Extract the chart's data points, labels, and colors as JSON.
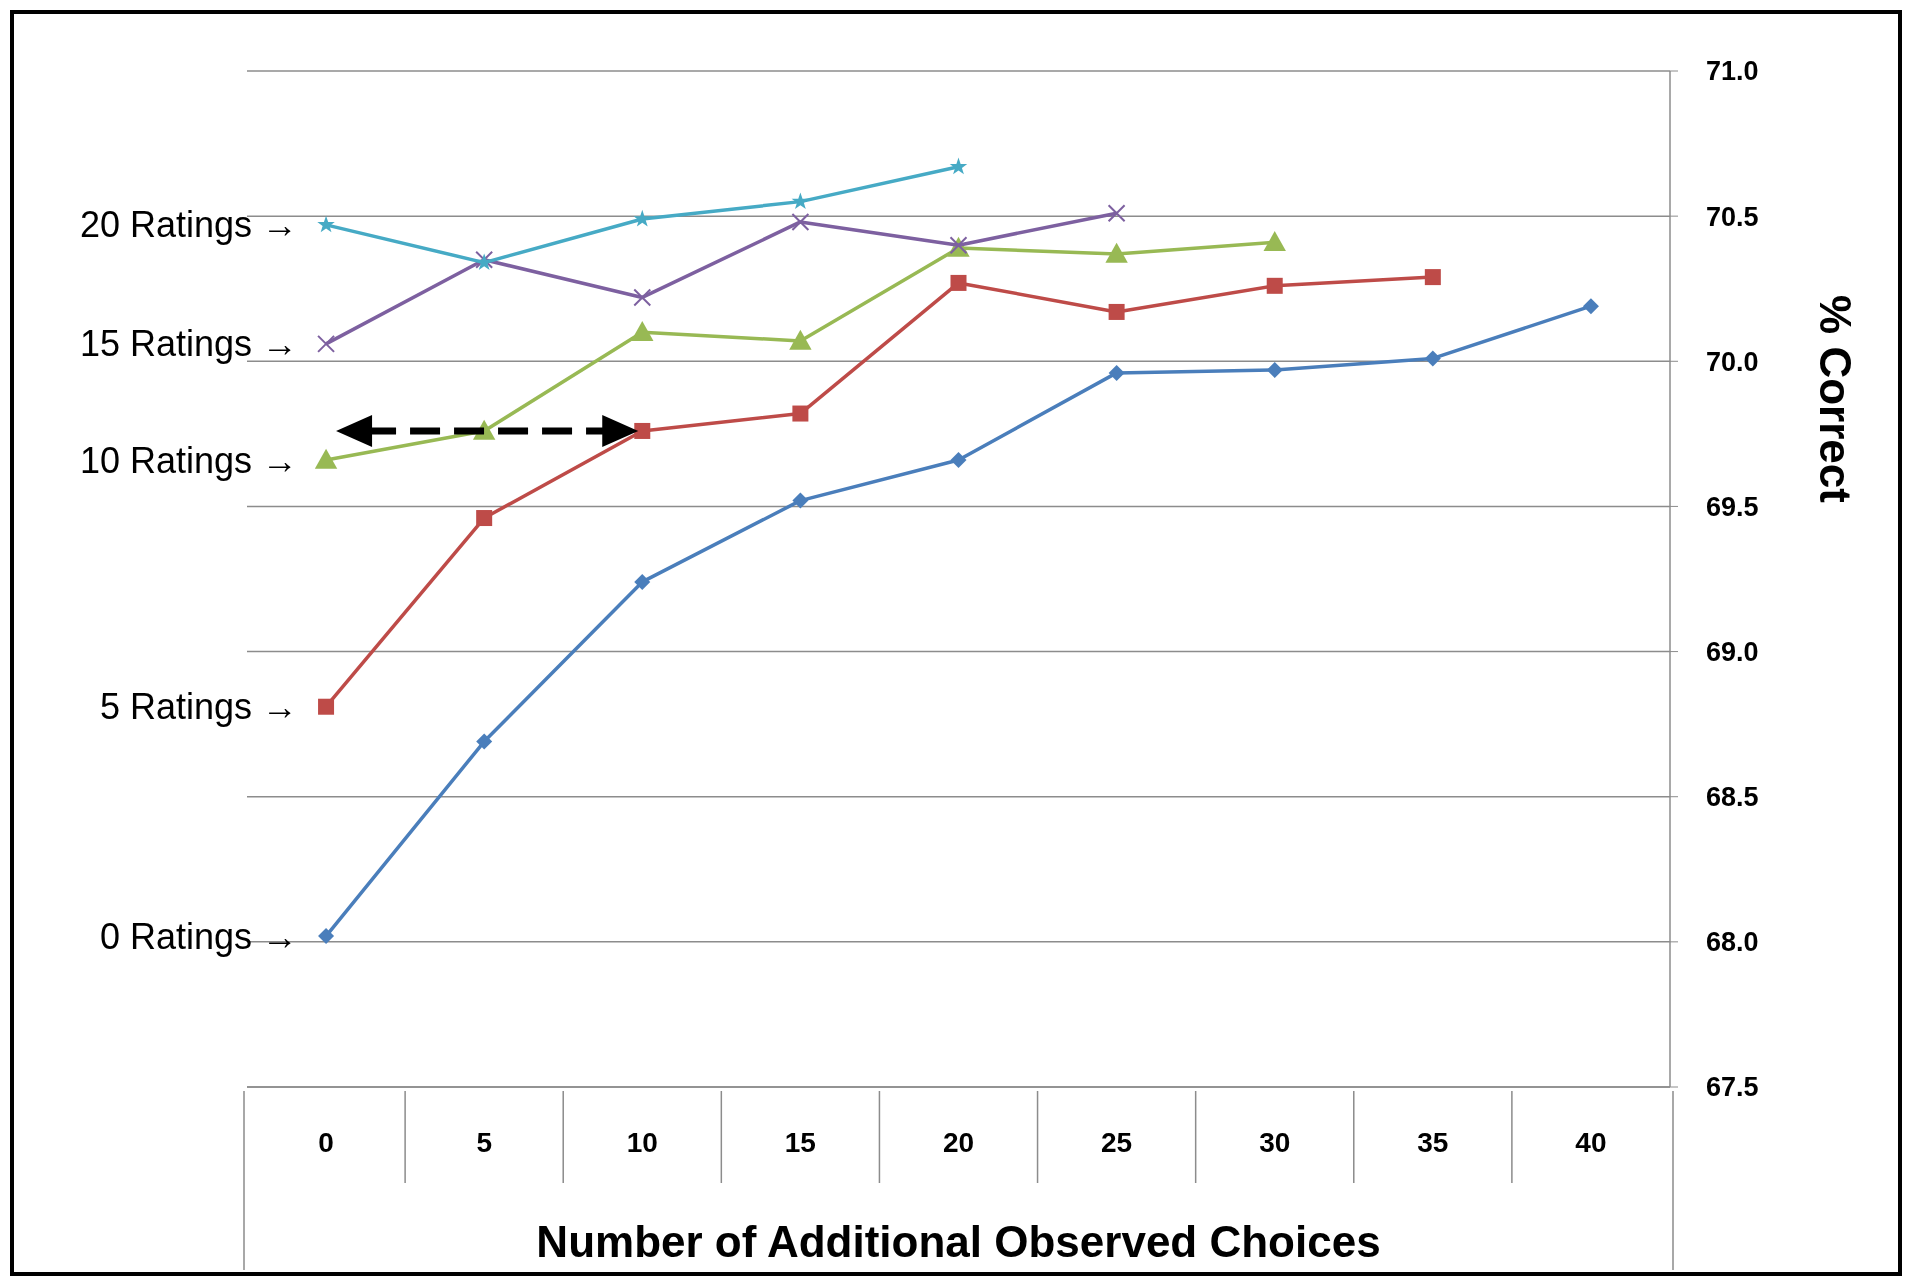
{
  "chart_data": {
    "type": "line",
    "xlabel": "Number of Additional Observed Choices",
    "ylabel": "% Correct",
    "categories": [
      "0",
      "5",
      "10",
      "15",
      "20",
      "25",
      "30",
      "35",
      "40"
    ],
    "series": [
      {
        "color": "#4a7ebb",
        "marker": "diamond",
        "values": [
          68.02,
          68.69,
          69.24,
          69.52,
          69.66,
          69.96,
          69.97,
          70.01,
          70.19
        ]
      },
      {
        "color": "#be4b48",
        "marker": "square",
        "values": [
          68.81,
          69.46,
          69.76,
          69.82,
          70.27,
          70.17,
          70.26,
          70.29,
          null
        ]
      },
      {
        "color": "#98b954",
        "marker": "triangle",
        "values": [
          69.66,
          69.76,
          70.1,
          70.07,
          70.39,
          70.37,
          70.41,
          null,
          null
        ]
      },
      {
        "color": "#7d60a0",
        "marker": "cross",
        "values": [
          70.06,
          70.35,
          70.22,
          70.48,
          70.4,
          70.51,
          null,
          null,
          null
        ]
      },
      {
        "color": "#46aac5",
        "marker": "star",
        "values": [
          70.47,
          70.34,
          70.49,
          70.55,
          70.67,
          null,
          null,
          null,
          null
        ]
      }
    ],
    "ylim": [
      67.5,
      71.0
    ],
    "yticks": [
      67.5,
      {
        "value": 68,
        "label": "68.0"
      },
      68.5,
      {
        "value": 69,
        "label": "69.0"
      },
      69.5,
      {
        "value": 70,
        "label": "70.0"
      },
      70.5,
      {
        "value": 71,
        "label": "71.0"
      }
    ],
    "grid": "y",
    "annotations": [
      {
        "text": "20 Ratings →",
        "x": "0",
        "y": 70.47
      },
      {
        "text": "15 Ratings →",
        "x": "0",
        "y": 70.06
      },
      {
        "text": "10 Ratings →",
        "x": "0",
        "y": 69.66
      },
      {
        "text": "5 Ratings →",
        "x": "0",
        "y": 68.81
      },
      {
        "text": "0 Ratings →",
        "x": "0",
        "y": 68.02
      }
    ]
  }
}
